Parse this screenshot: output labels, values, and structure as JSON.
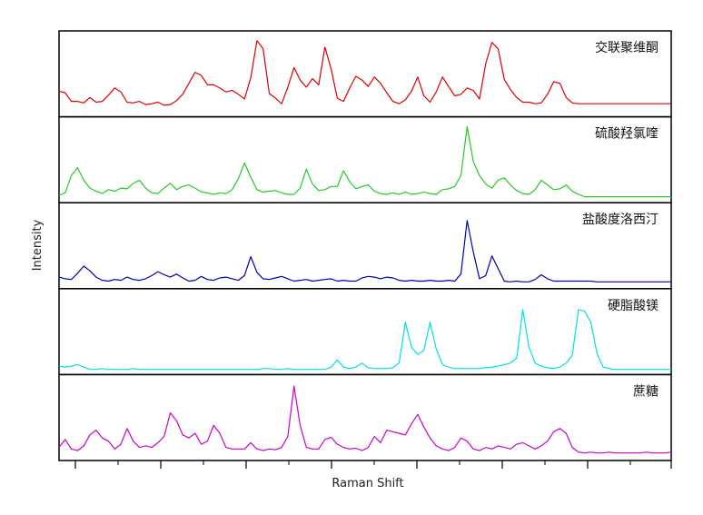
{
  "chart_data": {
    "type": "line",
    "xlabel": "Raman Shift",
    "ylabel": "Intensity",
    "series": [
      {
        "name": "交联聚维酮",
        "color": "#dd0000",
        "values": [
          0.28,
          0.26,
          0.15,
          0.15,
          0.13,
          0.2,
          0.14,
          0.15,
          0.23,
          0.32,
          0.27,
          0.14,
          0.13,
          0.15,
          0.11,
          0.12,
          0.14,
          0.1,
          0.11,
          0.16,
          0.24,
          0.38,
          0.52,
          0.48,
          0.36,
          0.36,
          0.32,
          0.27,
          0.29,
          0.24,
          0.18,
          0.45,
          0.92,
          0.82,
          0.25,
          0.19,
          0.12,
          0.33,
          0.58,
          0.42,
          0.33,
          0.44,
          0.36,
          0.84,
          0.56,
          0.19,
          0.15,
          0.32,
          0.47,
          0.42,
          0.34,
          0.46,
          0.38,
          0.26,
          0.15,
          0.12,
          0.17,
          0.28,
          0.46,
          0.22,
          0.14,
          0.27,
          0.46,
          0.34,
          0.22,
          0.24,
          0.32,
          0.29,
          0.18,
          0.63,
          0.9,
          0.82,
          0.43,
          0.3,
          0.2,
          0.14,
          0.14,
          0.12,
          0.13,
          0.24,
          0.4,
          0.38,
          0.2,
          0.13,
          0.12,
          0.12,
          0.12,
          0.12,
          0.12,
          0.12,
          0.12,
          0.12,
          0.12,
          0.12,
          0.12,
          0.12,
          0.12,
          0.12,
          0.12,
          0.12
        ]
      },
      {
        "name": "硫酸羟氯喹",
        "color": "#22cc22",
        "values": [
          0.05,
          0.08,
          0.3,
          0.4,
          0.24,
          0.14,
          0.1,
          0.07,
          0.12,
          0.1,
          0.14,
          0.13,
          0.2,
          0.24,
          0.14,
          0.08,
          0.07,
          0.14,
          0.2,
          0.12,
          0.16,
          0.18,
          0.14,
          0.09,
          0.08,
          0.06,
          0.08,
          0.07,
          0.12,
          0.26,
          0.46,
          0.28,
          0.12,
          0.09,
          0.1,
          0.11,
          0.08,
          0.06,
          0.06,
          0.14,
          0.38,
          0.19,
          0.11,
          0.12,
          0.16,
          0.16,
          0.36,
          0.22,
          0.13,
          0.16,
          0.18,
          0.1,
          0.07,
          0.06,
          0.08,
          0.06,
          0.09,
          0.06,
          0.07,
          0.09,
          0.07,
          0.06,
          0.12,
          0.13,
          0.16,
          0.3,
          0.92,
          0.48,
          0.3,
          0.19,
          0.14,
          0.24,
          0.27,
          0.18,
          0.11,
          0.07,
          0.06,
          0.12,
          0.24,
          0.18,
          0.12,
          0.13,
          0.18,
          0.1,
          0.06,
          0.03,
          0.03,
          0.03,
          0.03,
          0.03,
          0.03,
          0.03,
          0.03,
          0.03,
          0.03,
          0.03,
          0.03,
          0.03,
          0.03,
          0.03
        ]
      },
      {
        "name": "盐酸度洛西汀",
        "color": "#0000bb",
        "values": [
          0.1,
          0.08,
          0.07,
          0.15,
          0.24,
          0.18,
          0.1,
          0.06,
          0.05,
          0.07,
          0.06,
          0.1,
          0.07,
          0.06,
          0.08,
          0.12,
          0.17,
          0.13,
          0.1,
          0.14,
          0.09,
          0.05,
          0.06,
          0.11,
          0.07,
          0.06,
          0.09,
          0.1,
          0.08,
          0.06,
          0.12,
          0.36,
          0.16,
          0.08,
          0.07,
          0.09,
          0.11,
          0.08,
          0.05,
          0.06,
          0.07,
          0.05,
          0.06,
          0.07,
          0.08,
          0.05,
          0.06,
          0.05,
          0.05,
          0.09,
          0.11,
          0.1,
          0.08,
          0.1,
          0.09,
          0.06,
          0.05,
          0.06,
          0.05,
          0.05,
          0.06,
          0.05,
          0.05,
          0.06,
          0.05,
          0.14,
          0.82,
          0.42,
          0.08,
          0.12,
          0.37,
          0.21,
          0.05,
          0.04,
          0.05,
          0.04,
          0.04,
          0.07,
          0.13,
          0.08,
          0.05,
          0.05,
          0.05,
          0.05,
          0.05,
          0.05,
          0.05,
          0.04,
          0.04,
          0.04,
          0.04,
          0.04,
          0.04,
          0.04,
          0.04,
          0.04,
          0.04,
          0.04,
          0.04,
          0.04
        ]
      },
      {
        "name": "硬脂酸镁",
        "color": "#00e0e0",
        "values": [
          0.06,
          0.05,
          0.06,
          0.08,
          0.05,
          0.02,
          0.02,
          0.03,
          0.02,
          0.02,
          0.02,
          0.02,
          0.03,
          0.02,
          0.02,
          0.02,
          0.02,
          0.02,
          0.02,
          0.02,
          0.02,
          0.02,
          0.02,
          0.02,
          0.02,
          0.02,
          0.02,
          0.02,
          0.02,
          0.02,
          0.02,
          0.02,
          0.02,
          0.03,
          0.03,
          0.02,
          0.02,
          0.03,
          0.02,
          0.02,
          0.02,
          0.02,
          0.02,
          0.02,
          0.05,
          0.14,
          0.05,
          0.03,
          0.05,
          0.1,
          0.04,
          0.03,
          0.03,
          0.03,
          0.04,
          0.1,
          0.62,
          0.3,
          0.21,
          0.26,
          0.62,
          0.28,
          0.08,
          0.05,
          0.03,
          0.03,
          0.03,
          0.03,
          0.03,
          0.04,
          0.05,
          0.06,
          0.08,
          0.1,
          0.16,
          0.78,
          0.3,
          0.1,
          0.06,
          0.04,
          0.03,
          0.05,
          0.1,
          0.2,
          0.78,
          0.76,
          0.62,
          0.22,
          0.05,
          0.03,
          0.02,
          0.02,
          0.02,
          0.02,
          0.02,
          0.02,
          0.02,
          0.02,
          0.02,
          0.02
        ]
      },
      {
        "name": "蔗糖",
        "color": "#cc00cc",
        "values": [
          0.12,
          0.22,
          0.1,
          0.08,
          0.14,
          0.28,
          0.34,
          0.24,
          0.2,
          0.1,
          0.16,
          0.36,
          0.2,
          0.12,
          0.14,
          0.12,
          0.18,
          0.26,
          0.56,
          0.46,
          0.28,
          0.24,
          0.3,
          0.16,
          0.2,
          0.4,
          0.3,
          0.12,
          0.1,
          0.1,
          0.1,
          0.18,
          0.1,
          0.08,
          0.1,
          0.09,
          0.12,
          0.26,
          0.9,
          0.4,
          0.12,
          0.1,
          0.1,
          0.22,
          0.25,
          0.16,
          0.12,
          0.1,
          0.11,
          0.08,
          0.12,
          0.26,
          0.18,
          0.34,
          0.32,
          0.3,
          0.28,
          0.42,
          0.54,
          0.38,
          0.24,
          0.14,
          0.1,
          0.08,
          0.12,
          0.24,
          0.2,
          0.1,
          0.08,
          0.12,
          0.1,
          0.14,
          0.12,
          0.1,
          0.16,
          0.18,
          0.14,
          0.1,
          0.14,
          0.2,
          0.32,
          0.36,
          0.3,
          0.12,
          0.06,
          0.05,
          0.06,
          0.05,
          0.05,
          0.06,
          0.05,
          0.05,
          0.05,
          0.05,
          0.05,
          0.06,
          0.05,
          0.05,
          0.05,
          0.06
        ]
      }
    ],
    "grid": false
  }
}
